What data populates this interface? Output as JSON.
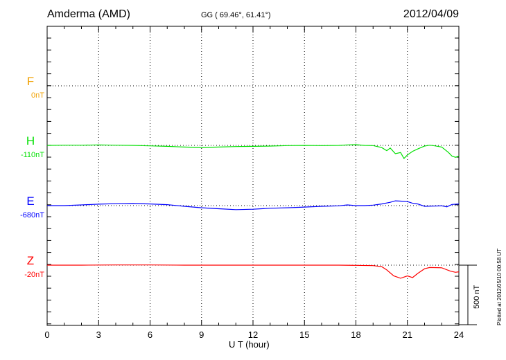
{
  "header": {
    "station": "Amderma (AMD)",
    "coords": "GG ( 69.46°,  61.41°)",
    "date": "2012/04/09"
  },
  "footer": "Plotted at 2012/05/10 00:58 UT",
  "chart_data": {
    "type": "line",
    "xlabel": "U T (hour)",
    "xlim": [
      0,
      24
    ],
    "xticks": [
      "0",
      "3",
      "6",
      "9",
      "12",
      "15",
      "18",
      "21",
      "24"
    ],
    "grid": true,
    "scale_bar": "500 nT",
    "channels": [
      {
        "name": "F",
        "baseline": "0nT",
        "color": "#f0a000",
        "points": []
      },
      {
        "name": "H",
        "baseline": "-110nT",
        "color": "#00e000",
        "points": [
          [
            0,
            0
          ],
          [
            1,
            2
          ],
          [
            2,
            2
          ],
          [
            3,
            4
          ],
          [
            4,
            2
          ],
          [
            5,
            0
          ],
          [
            6,
            -4
          ],
          [
            7,
            -8
          ],
          [
            8,
            -14
          ],
          [
            9,
            -18
          ],
          [
            10,
            -14
          ],
          [
            11,
            -10
          ],
          [
            12,
            -8
          ],
          [
            13,
            -6
          ],
          [
            14,
            -2
          ],
          [
            15,
            0
          ],
          [
            16,
            -2
          ],
          [
            17,
            0
          ],
          [
            17.5,
            4
          ],
          [
            18,
            6
          ],
          [
            18.5,
            0
          ],
          [
            19,
            -2
          ],
          [
            19.5,
            -18
          ],
          [
            19.8,
            -44
          ],
          [
            20,
            -22
          ],
          [
            20.3,
            -70
          ],
          [
            20.6,
            -60
          ],
          [
            20.8,
            -110
          ],
          [
            21,
            -80
          ],
          [
            21.3,
            -50
          ],
          [
            21.6,
            -30
          ],
          [
            22,
            -6
          ],
          [
            22.3,
            2
          ],
          [
            22.6,
            -4
          ],
          [
            23,
            -14
          ],
          [
            23.4,
            -60
          ],
          [
            23.6,
            -90
          ],
          [
            23.8,
            -100
          ],
          [
            24,
            -90
          ]
        ]
      },
      {
        "name": "E",
        "baseline": "-680nT",
        "color": "#0000ff",
        "points": [
          [
            0,
            0
          ],
          [
            1,
            0
          ],
          [
            2,
            6
          ],
          [
            3,
            12
          ],
          [
            4,
            16
          ],
          [
            5,
            18
          ],
          [
            6,
            14
          ],
          [
            7,
            8
          ],
          [
            8,
            -6
          ],
          [
            9,
            -18
          ],
          [
            10,
            -26
          ],
          [
            11,
            -34
          ],
          [
            12,
            -30
          ],
          [
            13,
            -22
          ],
          [
            14,
            -18
          ],
          [
            15,
            -12
          ],
          [
            16,
            -6
          ],
          [
            17,
            -2
          ],
          [
            17.5,
            6
          ],
          [
            18,
            0
          ],
          [
            18.5,
            0
          ],
          [
            19,
            4
          ],
          [
            19.5,
            14
          ],
          [
            20,
            28
          ],
          [
            20.3,
            40
          ],
          [
            20.6,
            38
          ],
          [
            21,
            34
          ],
          [
            21.3,
            20
          ],
          [
            21.6,
            14
          ],
          [
            22,
            -6
          ],
          [
            22.5,
            -4
          ],
          [
            23,
            -2
          ],
          [
            23.3,
            -10
          ],
          [
            23.6,
            10
          ],
          [
            24,
            14
          ]
        ]
      },
      {
        "name": "Z",
        "baseline": "-20nT",
        "color": "#ff0000",
        "points": [
          [
            0,
            0
          ],
          [
            2,
            0
          ],
          [
            4,
            2
          ],
          [
            6,
            2
          ],
          [
            8,
            0
          ],
          [
            10,
            0
          ],
          [
            12,
            0
          ],
          [
            14,
            0
          ],
          [
            16,
            0
          ],
          [
            17,
            0
          ],
          [
            18,
            -2
          ],
          [
            19,
            -4
          ],
          [
            19.5,
            -12
          ],
          [
            19.8,
            -40
          ],
          [
            20.2,
            -90
          ],
          [
            20.6,
            -110
          ],
          [
            21,
            -90
          ],
          [
            21.3,
            -104
          ],
          [
            21.6,
            -70
          ],
          [
            22,
            -30
          ],
          [
            22.3,
            -20
          ],
          [
            23,
            -22
          ],
          [
            23.5,
            -50
          ],
          [
            23.8,
            -60
          ],
          [
            24,
            -56
          ]
        ]
      }
    ]
  }
}
